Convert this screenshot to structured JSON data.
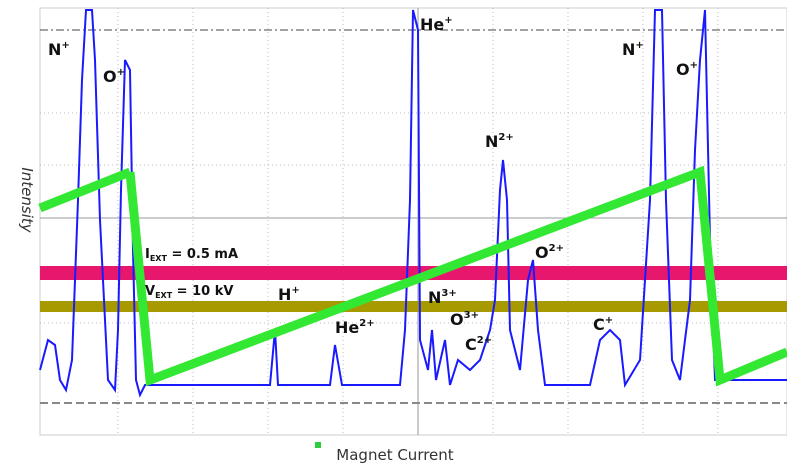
{
  "plot": {
    "y_label": "Intensity",
    "x_label": "Magnet Current",
    "conditions": [
      {
        "base": "I",
        "sub": "EXT",
        "rest": " = 0.5 mA"
      },
      {
        "base": "V",
        "sub": "EXT",
        "rest": " = 10 kV"
      }
    ],
    "peaks": [
      {
        "base": "N",
        "sup": "+"
      },
      {
        "base": "O",
        "sup": "+"
      },
      {
        "base": "He",
        "sup": "+"
      },
      {
        "base": "N",
        "sup": "2+"
      },
      {
        "base": "O",
        "sup": "2+"
      },
      {
        "base": "H",
        "sup": "+"
      },
      {
        "base": "He",
        "sup": "2+"
      },
      {
        "base": "N",
        "sup": "3+"
      },
      {
        "base": "O",
        "sup": "3+"
      },
      {
        "base": "C",
        "sup": "2+"
      },
      {
        "base": "C",
        "sup": "+"
      },
      {
        "base": "N",
        "sup": "+"
      },
      {
        "base": "O",
        "sup": "+"
      }
    ]
  }
}
